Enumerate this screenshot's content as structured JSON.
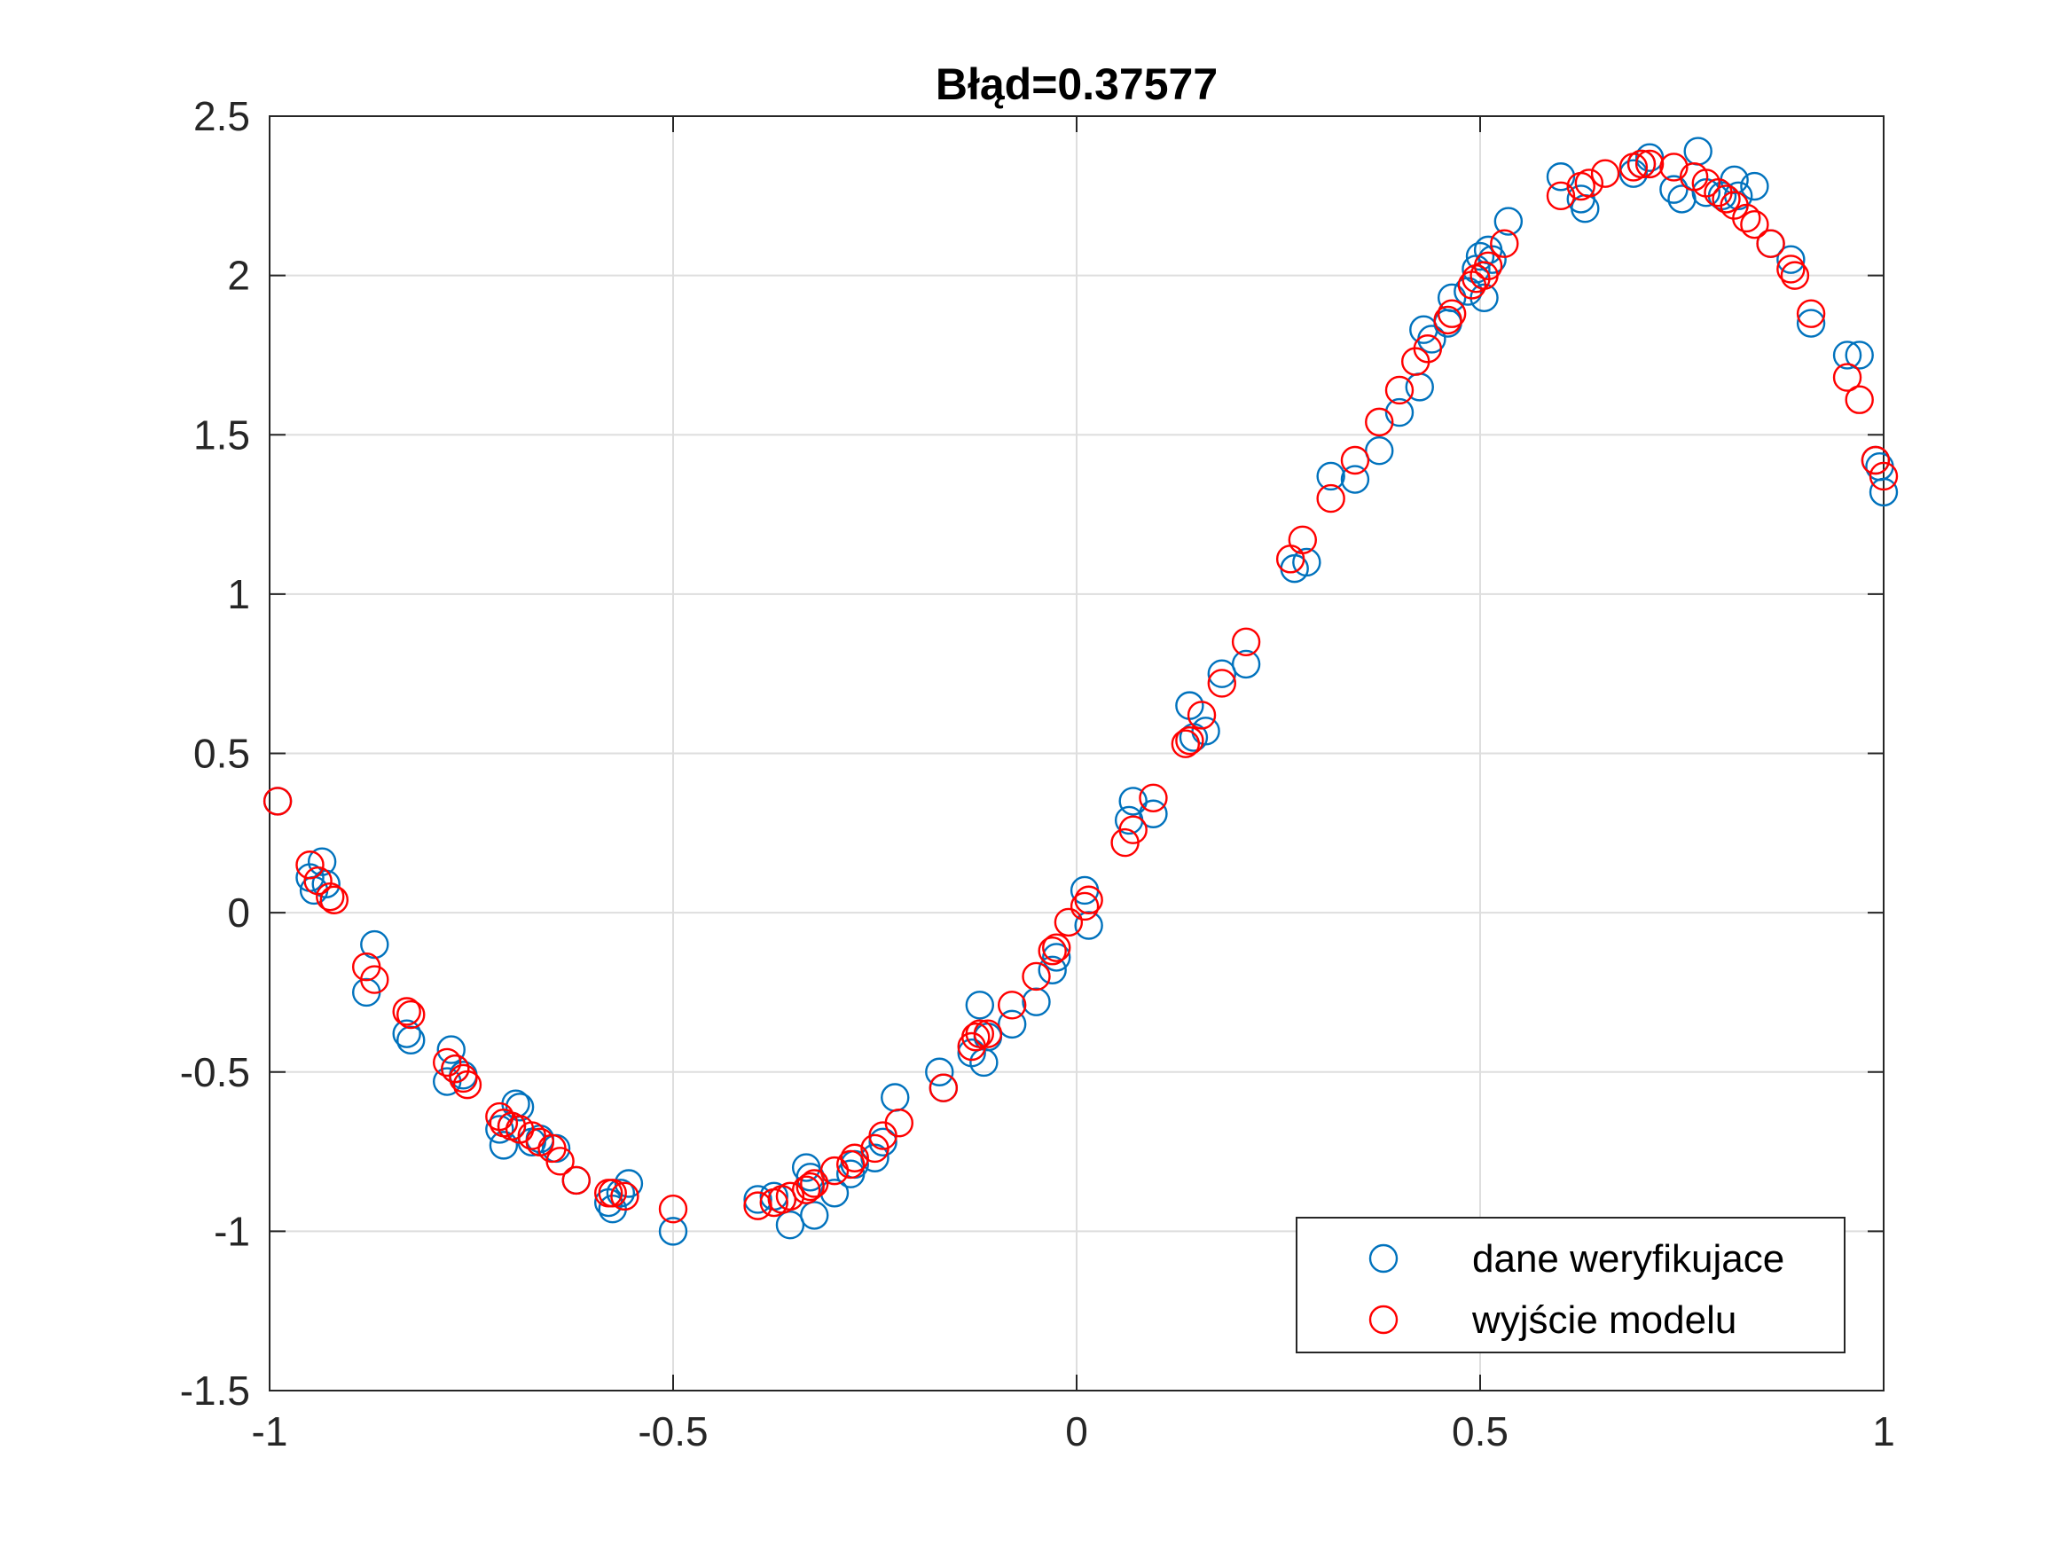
{
  "chart_data": {
    "type": "scatter",
    "title": "Błąd=0.37577",
    "xlabel": "",
    "ylabel": "",
    "xlim": [
      -1,
      1
    ],
    "ylim": [
      -1.5,
      2.5
    ],
    "x_ticks": [
      -1,
      -0.5,
      0,
      0.5,
      1
    ],
    "x_tick_labels": [
      "-1",
      "-0.5",
      "0",
      "0.5",
      "1"
    ],
    "y_ticks": [
      -1.5,
      -1,
      -0.5,
      0,
      0.5,
      1,
      1.5,
      2,
      2.5
    ],
    "y_tick_labels": [
      "-1.5",
      "-1",
      "-0.5",
      "0",
      "0.5",
      "1",
      "1.5",
      "2",
      "2.5"
    ],
    "grid": true,
    "legend_position": "bottom-right",
    "series": [
      {
        "name": "dane weryfikujace",
        "color": "#0072BD",
        "marker": "circle",
        "points": [
          [
            -0.99,
            0.35
          ],
          [
            -0.95,
            0.11
          ],
          [
            -0.945,
            0.07
          ],
          [
            -0.935,
            0.16
          ],
          [
            -0.93,
            0.09
          ],
          [
            -0.88,
            -0.25
          ],
          [
            -0.87,
            -0.1
          ],
          [
            -0.83,
            -0.38
          ],
          [
            -0.825,
            -0.4
          ],
          [
            -0.78,
            -0.53
          ],
          [
            -0.775,
            -0.43
          ],
          [
            -0.77,
            -0.49
          ],
          [
            -0.76,
            -0.51
          ],
          [
            -0.715,
            -0.68
          ],
          [
            -0.71,
            -0.73
          ],
          [
            -0.7,
            -0.67
          ],
          [
            -0.695,
            -0.6
          ],
          [
            -0.69,
            -0.61
          ],
          [
            -0.675,
            -0.72
          ],
          [
            -0.665,
            -0.71
          ],
          [
            -0.645,
            -0.74
          ],
          [
            -0.62,
            -0.84
          ],
          [
            -0.58,
            -0.91
          ],
          [
            -0.575,
            -0.93
          ],
          [
            -0.565,
            -0.88
          ],
          [
            -0.555,
            -0.85
          ],
          [
            -0.5,
            -1.0
          ],
          [
            -0.395,
            -0.9
          ],
          [
            -0.375,
            -0.89
          ],
          [
            -0.365,
            -0.9
          ],
          [
            -0.355,
            -0.98
          ],
          [
            -0.335,
            -0.8
          ],
          [
            -0.33,
            -0.83
          ],
          [
            -0.325,
            -0.95
          ],
          [
            -0.3,
            -0.88
          ],
          [
            -0.28,
            -0.82
          ],
          [
            -0.275,
            -0.79
          ],
          [
            -0.25,
            -0.77
          ],
          [
            -0.24,
            -0.72
          ],
          [
            -0.225,
            -0.58
          ],
          [
            -0.17,
            -0.5
          ],
          [
            -0.165,
            -0.55
          ],
          [
            -0.13,
            -0.44
          ],
          [
            -0.12,
            -0.29
          ],
          [
            -0.115,
            -0.47
          ],
          [
            -0.11,
            -0.39
          ],
          [
            -0.08,
            -0.35
          ],
          [
            -0.05,
            -0.28
          ],
          [
            -0.03,
            -0.18
          ],
          [
            -0.025,
            -0.14
          ],
          [
            0.01,
            0.07
          ],
          [
            0.015,
            -0.04
          ],
          [
            0.065,
            0.29
          ],
          [
            0.07,
            0.35
          ],
          [
            0.095,
            0.31
          ],
          [
            0.14,
            0.65
          ],
          [
            0.145,
            0.55
          ],
          [
            0.16,
            0.57
          ],
          [
            0.18,
            0.75
          ],
          [
            0.21,
            0.78
          ],
          [
            0.27,
            1.08
          ],
          [
            0.285,
            1.1
          ],
          [
            0.315,
            1.37
          ],
          [
            0.345,
            1.36
          ],
          [
            0.375,
            1.45
          ],
          [
            0.4,
            1.57
          ],
          [
            0.425,
            1.65
          ],
          [
            0.43,
            1.83
          ],
          [
            0.44,
            1.8
          ],
          [
            0.46,
            1.85
          ],
          [
            0.465,
            1.93
          ],
          [
            0.485,
            1.95
          ],
          [
            0.495,
            2.02
          ],
          [
            0.5,
            2.06
          ],
          [
            0.505,
            1.93
          ],
          [
            0.51,
            2.08
          ],
          [
            0.515,
            2.05
          ],
          [
            0.535,
            2.17
          ],
          [
            0.6,
            2.31
          ],
          [
            0.625,
            2.24
          ],
          [
            0.63,
            2.21
          ],
          [
            0.69,
            2.32
          ],
          [
            0.7,
            2.35
          ],
          [
            0.71,
            2.37
          ],
          [
            0.74,
            2.27
          ],
          [
            0.75,
            2.24
          ],
          [
            0.77,
            2.39
          ],
          [
            0.78,
            2.26
          ],
          [
            0.8,
            2.25
          ],
          [
            0.815,
            2.3
          ],
          [
            0.82,
            2.25
          ],
          [
            0.84,
            2.28
          ],
          [
            0.86,
            2.1
          ],
          [
            0.885,
            2.05
          ],
          [
            0.91,
            1.85
          ],
          [
            0.955,
            1.75
          ],
          [
            0.97,
            1.75
          ],
          [
            0.99,
            1.42
          ],
          [
            0.995,
            1.4
          ],
          [
            1.0,
            1.32
          ]
        ]
      },
      {
        "name": "wyjście modelu",
        "color": "#FF0000",
        "marker": "circle",
        "points": [
          [
            -0.99,
            0.35
          ],
          [
            -0.95,
            0.15
          ],
          [
            -0.94,
            0.1
          ],
          [
            -0.925,
            0.05
          ],
          [
            -0.92,
            0.04
          ],
          [
            -0.88,
            -0.17
          ],
          [
            -0.87,
            -0.21
          ],
          [
            -0.83,
            -0.31
          ],
          [
            -0.825,
            -0.32
          ],
          [
            -0.78,
            -0.47
          ],
          [
            -0.77,
            -0.49
          ],
          [
            -0.76,
            -0.52
          ],
          [
            -0.755,
            -0.54
          ],
          [
            -0.715,
            -0.64
          ],
          [
            -0.71,
            -0.66
          ],
          [
            -0.7,
            -0.67
          ],
          [
            -0.69,
            -0.68
          ],
          [
            -0.675,
            -0.7
          ],
          [
            -0.665,
            -0.72
          ],
          [
            -0.65,
            -0.74
          ],
          [
            -0.64,
            -0.78
          ],
          [
            -0.62,
            -0.84
          ],
          [
            -0.58,
            -0.88
          ],
          [
            -0.575,
            -0.88
          ],
          [
            -0.56,
            -0.89
          ],
          [
            -0.5,
            -0.93
          ],
          [
            -0.395,
            -0.92
          ],
          [
            -0.375,
            -0.91
          ],
          [
            -0.365,
            -0.9
          ],
          [
            -0.355,
            -0.89
          ],
          [
            -0.335,
            -0.87
          ],
          [
            -0.33,
            -0.86
          ],
          [
            -0.325,
            -0.85
          ],
          [
            -0.3,
            -0.81
          ],
          [
            -0.28,
            -0.79
          ],
          [
            -0.275,
            -0.77
          ],
          [
            -0.25,
            -0.74
          ],
          [
            -0.24,
            -0.7
          ],
          [
            -0.22,
            -0.66
          ],
          [
            -0.165,
            -0.55
          ],
          [
            -0.13,
            -0.42
          ],
          [
            -0.125,
            -0.39
          ],
          [
            -0.12,
            -0.38
          ],
          [
            -0.11,
            -0.38
          ],
          [
            -0.08,
            -0.29
          ],
          [
            -0.05,
            -0.2
          ],
          [
            -0.03,
            -0.12
          ],
          [
            -0.025,
            -0.11
          ],
          [
            -0.01,
            -0.03
          ],
          [
            0.01,
            0.02
          ],
          [
            0.015,
            0.04
          ],
          [
            0.06,
            0.22
          ],
          [
            0.07,
            0.26
          ],
          [
            0.095,
            0.36
          ],
          [
            0.135,
            0.53
          ],
          [
            0.14,
            0.54
          ],
          [
            0.155,
            0.62
          ],
          [
            0.18,
            0.72
          ],
          [
            0.21,
            0.85
          ],
          [
            0.265,
            1.11
          ],
          [
            0.28,
            1.17
          ],
          [
            0.315,
            1.3
          ],
          [
            0.345,
            1.42
          ],
          [
            0.375,
            1.54
          ],
          [
            0.4,
            1.64
          ],
          [
            0.42,
            1.73
          ],
          [
            0.435,
            1.77
          ],
          [
            0.46,
            1.86
          ],
          [
            0.465,
            1.88
          ],
          [
            0.49,
            1.97
          ],
          [
            0.495,
            1.99
          ],
          [
            0.505,
            2.0
          ],
          [
            0.51,
            2.03
          ],
          [
            0.53,
            2.1
          ],
          [
            0.6,
            2.25
          ],
          [
            0.625,
            2.28
          ],
          [
            0.635,
            2.29
          ],
          [
            0.655,
            2.32
          ],
          [
            0.69,
            2.34
          ],
          [
            0.7,
            2.35
          ],
          [
            0.71,
            2.35
          ],
          [
            0.74,
            2.34
          ],
          [
            0.765,
            2.31
          ],
          [
            0.78,
            2.29
          ],
          [
            0.795,
            2.26
          ],
          [
            0.805,
            2.24
          ],
          [
            0.815,
            2.22
          ],
          [
            0.83,
            2.18
          ],
          [
            0.84,
            2.16
          ],
          [
            0.86,
            2.1
          ],
          [
            0.885,
            2.02
          ],
          [
            0.89,
            2.0
          ],
          [
            0.91,
            1.88
          ],
          [
            0.955,
            1.68
          ],
          [
            0.97,
            1.61
          ],
          [
            0.99,
            1.42
          ],
          [
            1.0,
            1.37
          ]
        ]
      }
    ]
  }
}
